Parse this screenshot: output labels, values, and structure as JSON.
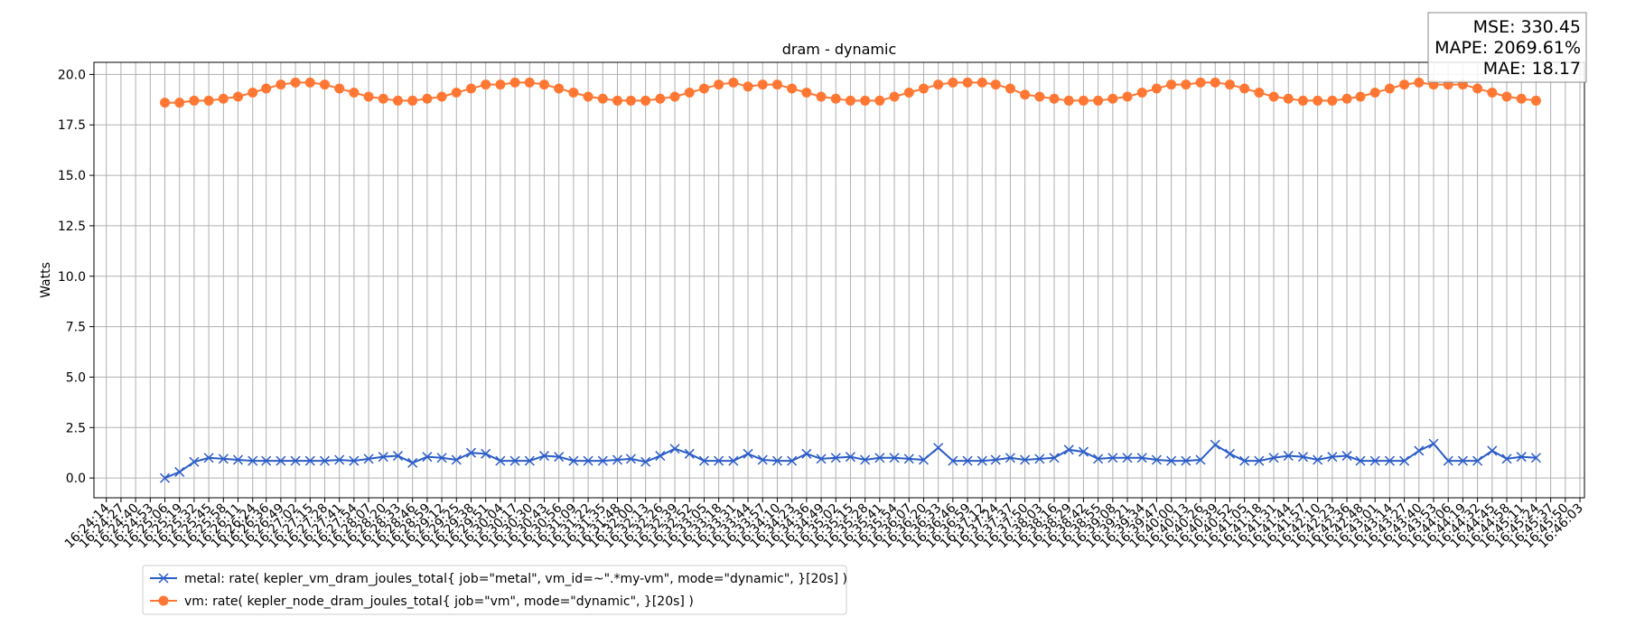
{
  "chart_data": {
    "type": "line",
    "title": "dram - dynamic",
    "y_label": "Watts",
    "annotation": [
      "MSE: 330.45",
      "MAPE: 2069.61%",
      "MAE: 18.17"
    ],
    "legend": "below",
    "grid": true,
    "x": [
      "16:25:06",
      "16:25:19",
      "16:25:32",
      "16:25:45",
      "16:25:58",
      "16:26:11",
      "16:26:24",
      "16:26:36",
      "16:26:49",
      "16:27:02",
      "16:27:15",
      "16:27:28",
      "16:27:41",
      "16:27:54",
      "16:28:07",
      "16:28:20",
      "16:28:33",
      "16:28:46",
      "16:28:59",
      "16:29:12",
      "16:29:25",
      "16:29:38",
      "16:29:51",
      "16:30:04",
      "16:30:17",
      "16:30:30",
      "16:30:43",
      "16:30:56",
      "16:31:09",
      "16:31:22",
      "16:31:35",
      "16:31:48",
      "16:32:00",
      "16:32:13",
      "16:32:26",
      "16:32:39",
      "16:32:52",
      "16:33:05",
      "16:33:18",
      "16:33:31",
      "16:33:44",
      "16:33:57",
      "16:34:10",
      "16:34:23",
      "16:34:36",
      "16:34:49",
      "16:35:02",
      "16:35:15",
      "16:35:28",
      "16:35:41",
      "16:35:54",
      "16:36:07",
      "16:36:20",
      "16:36:33",
      "16:36:46",
      "16:36:59",
      "16:37:12",
      "16:37:24",
      "16:37:37",
      "16:37:50",
      "16:38:03",
      "16:38:16",
      "16:38:29",
      "16:38:42",
      "16:38:55",
      "16:39:08",
      "16:39:21",
      "16:39:34",
      "16:39:47",
      "16:40:00",
      "16:40:13",
      "16:40:26",
      "16:40:39",
      "16:40:52",
      "16:41:05",
      "16:41:18",
      "16:41:31",
      "16:41:44",
      "16:41:57",
      "16:42:10",
      "16:42:23",
      "16:42:36",
      "16:42:48",
      "16:43:01",
      "16:43:14",
      "16:43:27",
      "16:43:40",
      "16:43:53",
      "16:44:06",
      "16:44:19",
      "16:44:32",
      "16:44:45",
      "16:44:58",
      "16:45:11",
      "16:45:24"
    ],
    "series": [
      {
        "name": "metal: rate( kepler_vm_dram_joules_total{ job=\"metal\", vm_id=~\".*my-vm\", mode=\"dynamic\", }[20s] )",
        "color": "#2a5cc8",
        "marker": "x",
        "values": [
          0.0,
          0.3,
          0.8,
          1.0,
          0.95,
          0.9,
          0.85,
          0.85,
          0.85,
          0.85,
          0.85,
          0.85,
          0.9,
          0.85,
          0.95,
          1.05,
          1.1,
          0.75,
          1.05,
          1.0,
          0.9,
          1.25,
          1.2,
          0.85,
          0.85,
          0.85,
          1.1,
          1.05,
          0.85,
          0.85,
          0.85,
          0.9,
          0.95,
          0.8,
          1.1,
          1.45,
          1.2,
          0.85,
          0.85,
          0.85,
          1.2,
          0.9,
          0.85,
          0.85,
          1.2,
          0.95,
          1.0,
          1.05,
          0.9,
          1.0,
          1.0,
          0.95,
          0.9,
          1.5,
          0.85,
          0.85,
          0.85,
          0.9,
          1.0,
          0.9,
          0.95,
          1.0,
          1.4,
          1.3,
          0.95,
          1.0,
          1.0,
          1.0,
          0.9,
          0.85,
          0.85,
          0.9,
          1.65,
          1.2,
          0.85,
          0.85,
          1.0,
          1.1,
          1.05,
          0.9,
          1.05,
          1.1,
          0.85,
          0.85,
          0.85,
          0.85,
          1.35,
          1.7,
          0.85,
          0.85,
          0.85,
          1.35,
          0.95,
          1.05,
          1.0
        ]
      },
      {
        "name": "vm: rate( kepler_node_dram_joules_total{ job=\"vm\", mode=\"dynamic\", }[20s] )",
        "color": "#ff7733",
        "marker": "o",
        "values": [
          18.6,
          18.6,
          18.7,
          18.7,
          18.8,
          18.9,
          19.1,
          19.3,
          19.5,
          19.6,
          19.6,
          19.5,
          19.3,
          19.1,
          18.9,
          18.8,
          18.7,
          18.7,
          18.8,
          18.9,
          19.1,
          19.3,
          19.5,
          19.5,
          19.6,
          19.6,
          19.5,
          19.3,
          19.1,
          18.9,
          18.8,
          18.7,
          18.7,
          18.7,
          18.8,
          18.9,
          19.1,
          19.3,
          19.5,
          19.6,
          19.4,
          19.5,
          19.5,
          19.3,
          19.1,
          18.9,
          18.8,
          18.7,
          18.7,
          18.7,
          18.9,
          19.1,
          19.3,
          19.5,
          19.6,
          19.6,
          19.6,
          19.5,
          19.3,
          19.0,
          18.9,
          18.8,
          18.7,
          18.7,
          18.7,
          18.8,
          18.9,
          19.1,
          19.3,
          19.5,
          19.5,
          19.6,
          19.6,
          19.5,
          19.3,
          19.1,
          18.9,
          18.8,
          18.7,
          18.7,
          18.7,
          18.8,
          18.9,
          19.1,
          19.3,
          19.5,
          19.6,
          19.5,
          19.5,
          19.5,
          19.3,
          19.1,
          18.9,
          18.8,
          18.7
        ]
      }
    ],
    "xlim": [
      "16:24:03",
      "16:46:07"
    ],
    "xticks": [
      "16:24:14",
      "16:24:27",
      "16:24:40",
      "16:24:53",
      "16:25:06",
      "16:25:19",
      "16:25:32",
      "16:25:45",
      "16:25:58",
      "16:26:11",
      "16:26:24",
      "16:26:36",
      "16:26:49",
      "16:27:02",
      "16:27:15",
      "16:27:28",
      "16:27:41",
      "16:27:54",
      "16:28:07",
      "16:28:20",
      "16:28:33",
      "16:28:46",
      "16:28:59",
      "16:29:12",
      "16:29:25",
      "16:29:38",
      "16:29:51",
      "16:30:04",
      "16:30:17",
      "16:30:30",
      "16:30:43",
      "16:30:56",
      "16:31:09",
      "16:31:22",
      "16:31:35",
      "16:31:48",
      "16:32:00",
      "16:32:13",
      "16:32:26",
      "16:32:39",
      "16:32:52",
      "16:33:05",
      "16:33:18",
      "16:33:31",
      "16:33:44",
      "16:33:57",
      "16:34:10",
      "16:34:23",
      "16:34:36",
      "16:34:49",
      "16:35:02",
      "16:35:15",
      "16:35:28",
      "16:35:41",
      "16:35:54",
      "16:36:07",
      "16:36:20",
      "16:36:33",
      "16:36:46",
      "16:36:59",
      "16:37:12",
      "16:37:24",
      "16:37:37",
      "16:37:50",
      "16:38:03",
      "16:38:16",
      "16:38:29",
      "16:38:42",
      "16:38:55",
      "16:39:08",
      "16:39:21",
      "16:39:34",
      "16:39:47",
      "16:40:00",
      "16:40:13",
      "16:40:26",
      "16:40:39",
      "16:40:52",
      "16:41:05",
      "16:41:18",
      "16:41:31",
      "16:41:44",
      "16:41:57",
      "16:42:10",
      "16:42:23",
      "16:42:36",
      "16:42:48",
      "16:43:01",
      "16:43:14",
      "16:43:27",
      "16:43:40",
      "16:43:53",
      "16:44:06",
      "16:44:19",
      "16:44:32",
      "16:44:45",
      "16:44:58",
      "16:45:11",
      "16:45:24",
      "16:45:37",
      "16:45:50",
      "16:46:03"
    ],
    "ylim": [
      -0.98,
      20.6
    ],
    "yticks": [
      {
        "value": 0,
        "label": "0.0"
      },
      2.5,
      {
        "value": 5,
        "label": "5.0"
      },
      7.5,
      {
        "value": 10,
        "label": "10.0"
      },
      12.5,
      {
        "value": 15,
        "label": "15.0"
      },
      17.5,
      {
        "value": 20,
        "label": "20.0"
      }
    ]
  }
}
